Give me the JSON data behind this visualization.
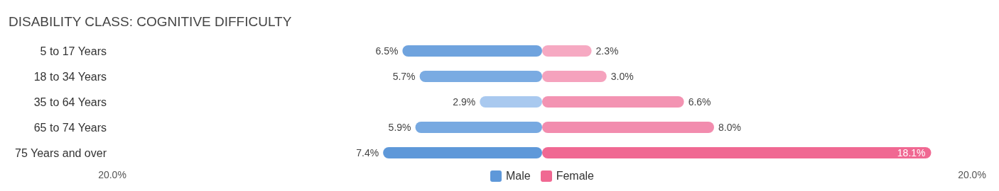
{
  "chart_data": {
    "type": "bar",
    "title": "DISABILITY CLASS: COGNITIVE DIFFICULTY",
    "orientation": "horizontal",
    "categories": [
      "5 to 17 Years",
      "18 to 34 Years",
      "35 to 64 Years",
      "65 to 74 Years",
      "75 Years and over"
    ],
    "series": [
      {
        "name": "Male",
        "color": "#5e98d9",
        "colors": [
          "#6fa3de",
          "#7aabe2",
          "#a9c9ef",
          "#77a9e1",
          "#5e98d9"
        ],
        "values": [
          6.5,
          5.7,
          2.9,
          5.9,
          7.4
        ],
        "base": [
          -6.5,
          -5.7,
          -2.9,
          -5.9,
          -7.4
        ],
        "value_labels": [
          "6.5%",
          "5.7%",
          "2.9%",
          "5.9%",
          "7.4%"
        ]
      },
      {
        "name": "Female",
        "color": "#f06892",
        "colors": [
          "#f6a9c2",
          "#f5a2bd",
          "#f393b2",
          "#f28cae",
          "#f06892"
        ],
        "values": [
          2.3,
          3.0,
          6.6,
          8.0,
          18.1
        ],
        "value_labels": [
          "2.3%",
          "3.0%",
          "6.6%",
          "8.0%",
          "18.1%"
        ]
      }
    ],
    "xlim": [
      -20,
      20
    ],
    "xticks": [
      {
        "value": -20,
        "label": "20.0%"
      },
      {
        "value": 20,
        "label": "20.0%"
      }
    ],
    "legend": "bottom"
  }
}
